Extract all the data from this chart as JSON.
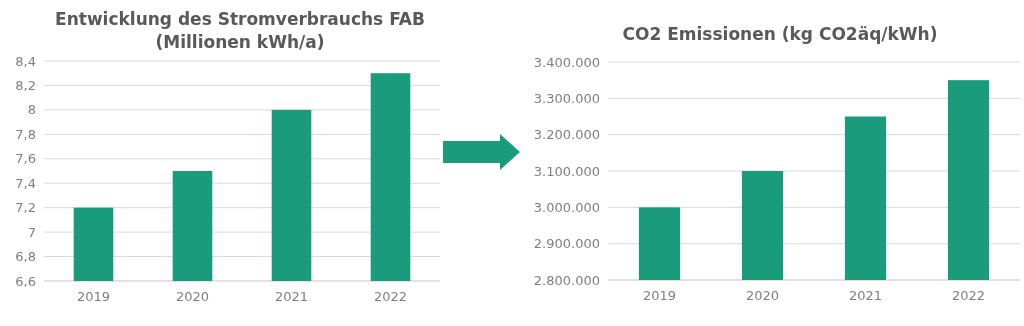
{
  "chart_data": [
    {
      "type": "bar",
      "title": "Entwicklung des Stromverbrauchs FAB\n(Millionen kWh/a)",
      "categories": [
        "2019",
        "2020",
        "2021",
        "2022"
      ],
      "values": [
        7.2,
        7.5,
        8.0,
        8.3
      ],
      "color": "#1a9c7c",
      "ylim": [
        6.6,
        8.4
      ],
      "yticks": [
        {
          "value": 6.6,
          "label": "6,6"
        },
        {
          "value": 6.8,
          "label": "6,8"
        },
        7,
        {
          "value": 7.2,
          "label": "7,2"
        },
        {
          "value": 7.4,
          "label": "7,4"
        },
        {
          "value": 7.6,
          "label": "7,6"
        },
        {
          "value": 7.8,
          "label": "7,8"
        },
        8,
        {
          "value": 8.2,
          "label": "8,2"
        },
        {
          "value": 8.4,
          "label": "8,4"
        }
      ],
      "grid": "y"
    },
    {
      "type": "bar",
      "title": "CO2 Emissionen (kg CO2äq/kWh)",
      "categories": [
        "2019",
        "2020",
        "2021",
        "2022"
      ],
      "values": [
        3000000,
        3100000,
        3250000,
        3350000
      ],
      "color": "#1a9c7c",
      "ylim": [
        2800000,
        3400000
      ],
      "yticks": [
        {
          "value": 2800000,
          "label": "2.800.000"
        },
        {
          "value": 2900000,
          "label": "2.900.000"
        },
        {
          "value": 3000000,
          "label": "3.000.000"
        },
        {
          "value": 3100000,
          "label": "3.100.000"
        },
        {
          "value": 3200000,
          "label": "3.200.000"
        },
        {
          "value": 3300000,
          "label": "3.300.000"
        },
        {
          "value": 3400000,
          "label": "3.400.000"
        }
      ],
      "grid": "y"
    }
  ]
}
